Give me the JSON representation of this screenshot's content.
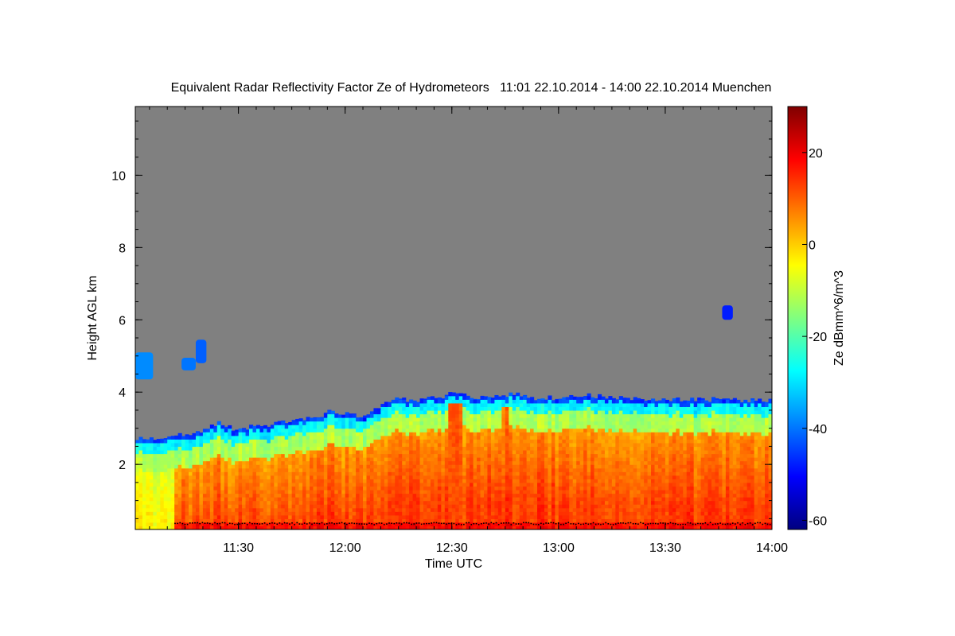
{
  "chart_data": {
    "type": "heatmap",
    "title": "Equivalent Radar Reflectivity Factor Ze of Hydrometeors   11:01 22.10.2014 - 14:00 22.10.2014 Muenchen",
    "xlabel": "Time UTC",
    "ylabel": "Height AGL km",
    "colorbar_label": "Ze dBmm^6/m^3",
    "x_range_minutes": [
      661,
      840
    ],
    "y_range_km": [
      0.2,
      11.9
    ],
    "x_ticks": [
      {
        "value": 690,
        "label": "11:30"
      },
      {
        "value": 720,
        "label": "12:00"
      },
      {
        "value": 750,
        "label": "12:30"
      },
      {
        "value": 780,
        "label": "13:00"
      },
      {
        "value": 810,
        "label": "13:30"
      },
      {
        "value": 840,
        "label": "14:00"
      }
    ],
    "x_minor_step_minutes": 5,
    "y_ticks": [
      {
        "value": 2,
        "label": "2"
      },
      {
        "value": 4,
        "label": "4"
      },
      {
        "value": 6,
        "label": "6"
      },
      {
        "value": 8,
        "label": "8"
      },
      {
        "value": 10,
        "label": "10"
      }
    ],
    "y_minor_step_km": 0.5,
    "colorbar_range": [
      -62,
      30
    ],
    "colorbar_ticks": [
      {
        "value": 20,
        "label": "20"
      },
      {
        "value": 0,
        "label": "0"
      },
      {
        "value": -20,
        "label": "-20"
      },
      {
        "value": -40,
        "label": "-40"
      },
      {
        "value": -60,
        "label": "-60"
      }
    ],
    "colormap": [
      "#00007f",
      "#0000ff",
      "#0080ff",
      "#00ffff",
      "#80ff80",
      "#ffff00",
      "#ff8000",
      "#ff0000",
      "#7f0000"
    ],
    "background_color": "#808080",
    "echo_top_km": [
      [
        661,
        2.75
      ],
      [
        668,
        2.75
      ],
      [
        675,
        2.85
      ],
      [
        681,
        2.95
      ],
      [
        684,
        3.15
      ],
      [
        688,
        3.0
      ],
      [
        695,
        3.05
      ],
      [
        702,
        3.15
      ],
      [
        708,
        3.3
      ],
      [
        712,
        3.25
      ],
      [
        716,
        3.5
      ],
      [
        720,
        3.4
      ],
      [
        724,
        3.35
      ],
      [
        728,
        3.5
      ],
      [
        731,
        3.75
      ],
      [
        737,
        3.8
      ],
      [
        743,
        3.8
      ],
      [
        747,
        3.85
      ],
      [
        751,
        4.0
      ],
      [
        755,
        3.9
      ],
      [
        760,
        3.85
      ],
      [
        765,
        3.9
      ],
      [
        767,
        4.0
      ],
      [
        770,
        3.85
      ],
      [
        776,
        3.85
      ],
      [
        782,
        3.85
      ],
      [
        790,
        3.9
      ],
      [
        800,
        3.85
      ],
      [
        810,
        3.8
      ],
      [
        820,
        3.8
      ],
      [
        830,
        3.8
      ],
      [
        840,
        3.75
      ]
    ],
    "convective_columns": [
      {
        "center_min": 751,
        "width_min": 1.5,
        "top_km": 3.9,
        "ze_dbz": 12
      },
      {
        "center_min": 765,
        "width_min": 1.2,
        "top_km": 3.85,
        "ze_dbz": 8
      }
    ],
    "isolated_cloud_patches": [
      {
        "t_start": 661,
        "t_end": 666,
        "z_bottom_km": 4.35,
        "z_top_km": 5.1,
        "ze_dbz": -38
      },
      {
        "t_start": 674,
        "t_end": 678,
        "z_bottom_km": 4.6,
        "z_top_km": 4.95,
        "ze_dbz": -40
      },
      {
        "t_start": 678,
        "t_end": 681,
        "z_bottom_km": 4.8,
        "z_top_km": 5.45,
        "ze_dbz": -42
      },
      {
        "t_start": 826,
        "t_end": 829,
        "z_bottom_km": 6.0,
        "z_top_km": 6.4,
        "ze_dbz": -48
      }
    ],
    "melting_layer_trace_km": 0.38
  }
}
